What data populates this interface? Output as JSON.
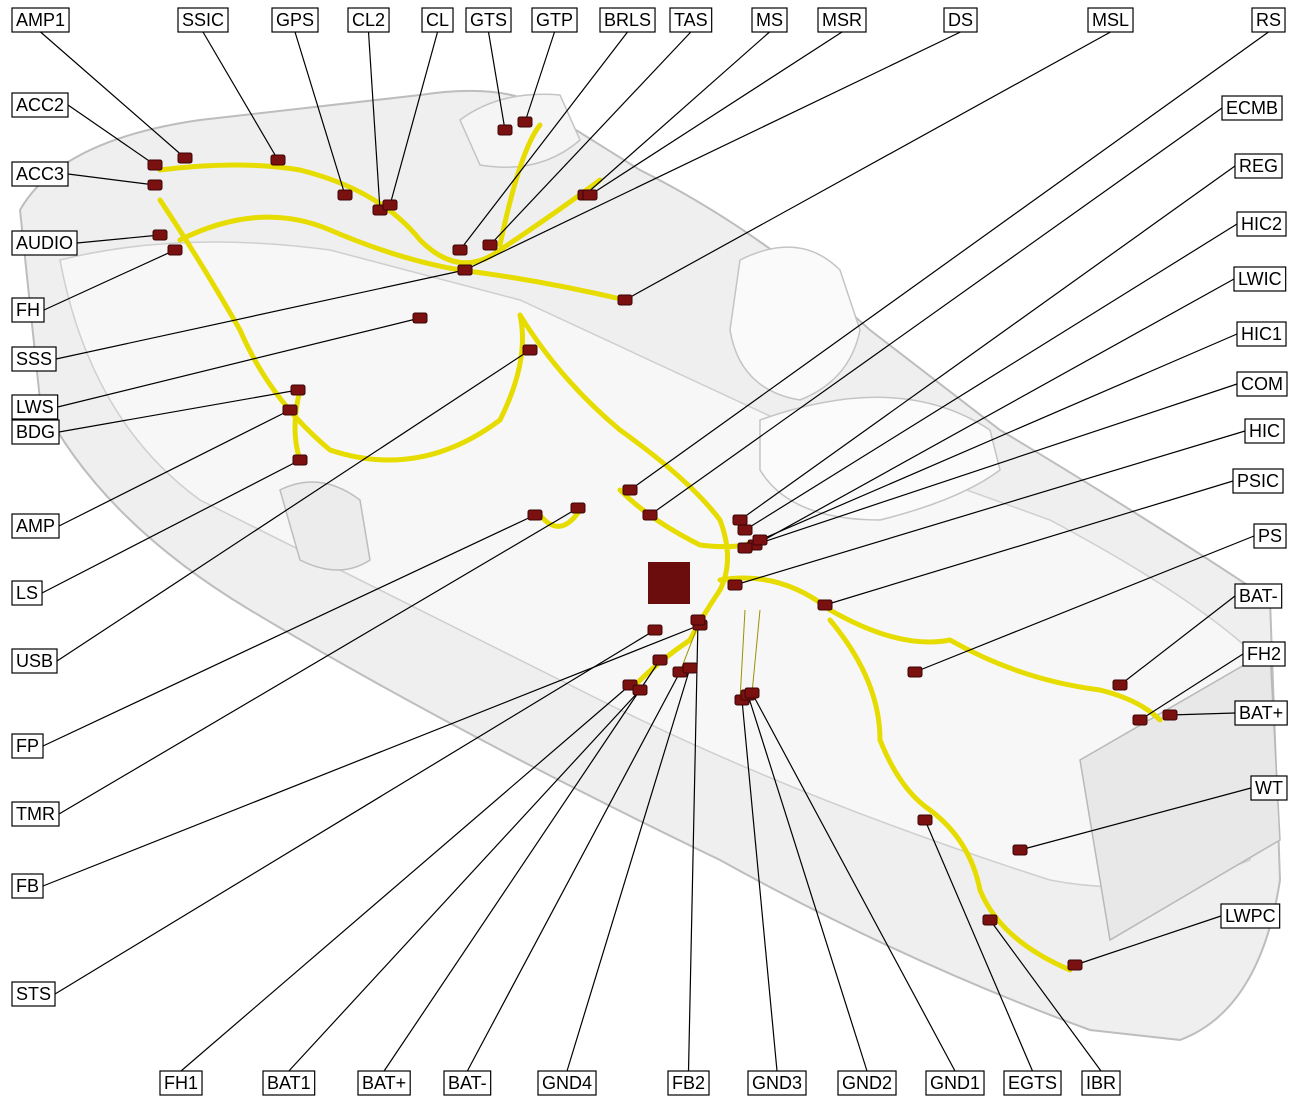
{
  "labels": [
    "AMP1",
    "SSIC",
    "GPS",
    "CL2",
    "CL",
    "GTS",
    "GTP",
    "BRLS",
    "TAS",
    "MS",
    "MSR",
    "DS",
    "MSL",
    "RS",
    "ACC2",
    "ACC3",
    "AUDIO",
    "FH",
    "SSS",
    "LWS",
    "BDG",
    "AMP",
    "LS",
    "USB",
    "FP",
    "TMR",
    "FB",
    "STS",
    "ECMB",
    "REG",
    "HIC2",
    "LWIC",
    "HIC1",
    "COM",
    "HIC",
    "PSIC",
    "PS",
    "BAT-",
    "FH2",
    "BAT+",
    "WT",
    "LWPC",
    "FH1",
    "BAT1",
    "BAT+",
    "BAT-",
    "GND4",
    "FB2",
    "GND3",
    "GND2",
    "GND1",
    "EGTS",
    "IBR"
  ]
}
